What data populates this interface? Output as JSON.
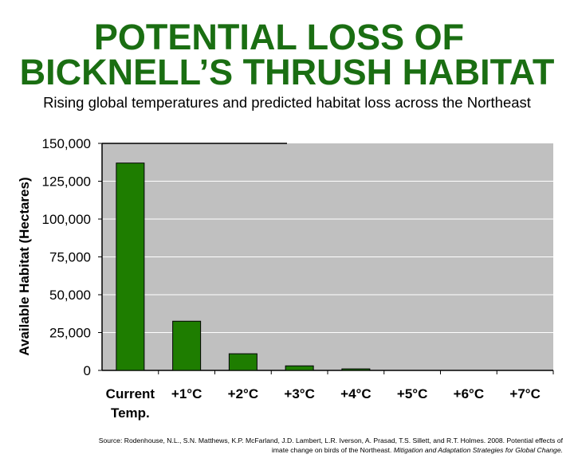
{
  "header": {
    "title_line1": "POTENTIAL LOSS OF",
    "title_line2": "BICKNELL’S THRUSH HABITAT",
    "subtitle": "Rising global temperatures and predicted habitat loss across the Northeast"
  },
  "source": {
    "line1": "Source: Rodenhouse, N.L., S.N. Matthews, K.P. McFarland, J.D. Lambert, L.R. Iverson, A. Prasad, T.S. Sillett, and R.T. Holmes. 2008. Potential effects of",
    "line2_plain": "imate change on birds of the Northeast. ",
    "line2_italic": "Mitigation and Adaptation Strategies for Global Change."
  },
  "chart_data": {
    "type": "bar",
    "title": "",
    "xlabel": "",
    "ylabel": "Available Habitat (Hectares)",
    "categories": [
      [
        "Current",
        "Temp."
      ],
      [
        "+1°C"
      ],
      [
        "+2°C"
      ],
      [
        "+3°C"
      ],
      [
        "+4°C"
      ],
      [
        "+5°C"
      ],
      [
        "+6°C"
      ],
      [
        "+7°C"
      ]
    ],
    "values": [
      137000,
      32500,
      11000,
      3000,
      1000,
      0,
      0,
      0
    ],
    "ylim": [
      0,
      150000
    ],
    "yticks": [
      0,
      25000,
      50000,
      75000,
      100000,
      125000,
      150000
    ],
    "ytick_labels": [
      "0",
      "25,000",
      "50,000",
      "75,000",
      "100,000",
      "125,000",
      "150,000"
    ],
    "grid": true,
    "colors": {
      "bar": "#1e7d00",
      "plot_bg": "#c0c0c0",
      "title": "#1a6e12"
    }
  }
}
